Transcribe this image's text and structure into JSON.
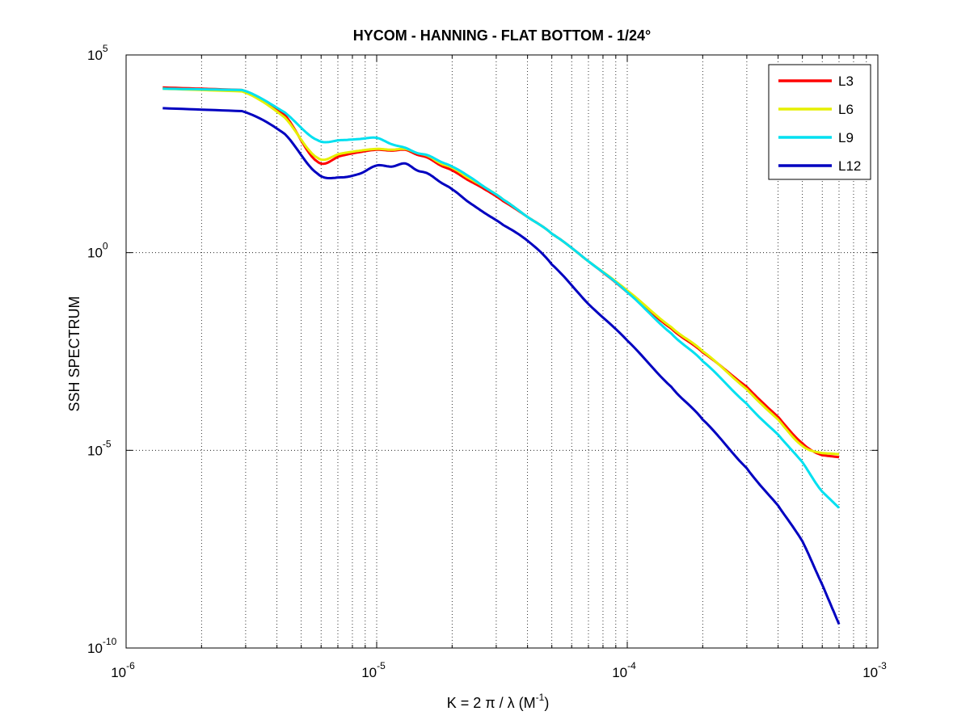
{
  "chart_data": {
    "type": "line",
    "title": "HYCOM - HANNING - FLAT BOTTOM - 1/24°",
    "xlabel": {
      "prefix": "K = 2 π / λ  (M",
      "sup": "-1",
      "suffix": ")"
    },
    "ylabel": "SSH SPECTRUM",
    "xscale": "log",
    "yscale": "log",
    "xlim": [
      1e-06,
      0.001
    ],
    "ylim": [
      1e-10,
      100000.0
    ],
    "grid": true,
    "x_ticks": [
      {
        "value": 1e-06,
        "base": "10",
        "exp": "-6"
      },
      {
        "value": 1e-05,
        "base": "10",
        "exp": "-5"
      },
      {
        "value": 0.0001,
        "base": "10",
        "exp": "-4"
      },
      {
        "value": 0.001,
        "base": "10",
        "exp": "-3"
      }
    ],
    "y_ticks": [
      {
        "value": 1e-10,
        "base": "10",
        "exp": "-10"
      },
      {
        "value": 1e-05,
        "base": "10",
        "exp": "-5"
      },
      {
        "value": 1,
        "base": "10",
        "exp": "0"
      },
      {
        "value": 100000.0,
        "base": "10",
        "exp": "5"
      }
    ],
    "legend_position": "top-right",
    "series": [
      {
        "name": "L3",
        "color": "#ff0000",
        "x": [
          1.4e-06,
          2.9e-06,
          4.3e-06,
          5.8e-06,
          7.2e-06,
          8.6e-06,
          1e-05,
          1.15e-05,
          1.3e-05,
          1.45e-05,
          1.6e-05,
          1.8e-05,
          2e-05,
          2.3e-05,
          2.7e-05,
          3.2e-05,
          4e-05,
          5e-05,
          7e-05,
          0.0001,
          0.00015,
          0.0002,
          0.0003,
          0.0004,
          0.0005,
          0.0006,
          0.0007
        ],
        "y": [
          15000.0,
          13000.0,
          3000,
          200,
          280,
          350,
          400,
          380,
          400,
          300,
          250,
          160,
          120,
          70,
          40,
          20,
          8,
          3,
          0.6,
          0.1,
          0.012,
          0.003,
          0.0004,
          7e-05,
          1.5e-05,
          7.5e-06,
          6.7e-06
        ]
      },
      {
        "name": "L6",
        "color": "#e6f000",
        "x": [
          1.4e-06,
          2.9e-06,
          4.3e-06,
          5.8e-06,
          7.2e-06,
          8.6e-06,
          1e-05,
          1.15e-05,
          1.3e-05,
          1.45e-05,
          1.6e-05,
          1.8e-05,
          2e-05,
          2.3e-05,
          2.7e-05,
          3.2e-05,
          4e-05,
          5e-05,
          7e-05,
          0.0001,
          0.00015,
          0.0002,
          0.0003,
          0.0004,
          0.0005,
          0.0006,
          0.0007
        ],
        "y": [
          14000.0,
          12000.0,
          2600,
          250,
          320,
          380,
          420,
          400,
          420,
          330,
          280,
          180,
          140,
          80,
          45,
          22,
          8,
          3,
          0.6,
          0.11,
          0.013,
          0.0032,
          0.00035,
          6e-05,
          1.3e-05,
          8.5e-06,
          8e-06
        ]
      },
      {
        "name": "L9",
        "color": "#00e0f0",
        "x": [
          1.4e-06,
          2.9e-06,
          4.3e-06,
          5.8e-06,
          7.2e-06,
          8.6e-06,
          1e-05,
          1.15e-05,
          1.3e-05,
          1.45e-05,
          1.6e-05,
          1.8e-05,
          2e-05,
          2.3e-05,
          2.7e-05,
          3.2e-05,
          4e-05,
          5e-05,
          7e-05,
          0.0001,
          0.00015,
          0.0002,
          0.0003,
          0.0004,
          0.0005,
          0.0006,
          0.0007
        ],
        "y": [
          14000.0,
          13000.0,
          3500,
          700,
          700,
          750,
          800,
          550,
          450,
          330,
          290,
          200,
          150,
          90,
          45,
          22,
          8,
          3,
          0.6,
          0.1,
          0.009,
          0.0018,
          0.00015,
          2.5e-05,
          5e-06,
          9e-07,
          3.5e-07
        ]
      },
      {
        "name": "L12",
        "color": "#0000c0",
        "x": [
          1.4e-06,
          2.9e-06,
          4.3e-06,
          5.8e-06,
          7.2e-06,
          8.6e-06,
          1e-05,
          1.15e-05,
          1.3e-05,
          1.45e-05,
          1.6e-05,
          1.8e-05,
          2e-05,
          2.3e-05,
          2.7e-05,
          3.2e-05,
          4e-05,
          5e-05,
          7e-05,
          0.0001,
          0.00015,
          0.0002,
          0.0003,
          0.0004,
          0.0005,
          0.0006,
          0.0007
        ],
        "y": [
          4500,
          3800,
          1000,
          100,
          80,
          100,
          160,
          150,
          180,
          120,
          100,
          60,
          40,
          20,
          10,
          5,
          2,
          0.5,
          0.05,
          0.006,
          0.0004,
          6e-05,
          3.5e-06,
          4e-07,
          5e-08,
          4e-09,
          4e-10
        ]
      }
    ]
  }
}
